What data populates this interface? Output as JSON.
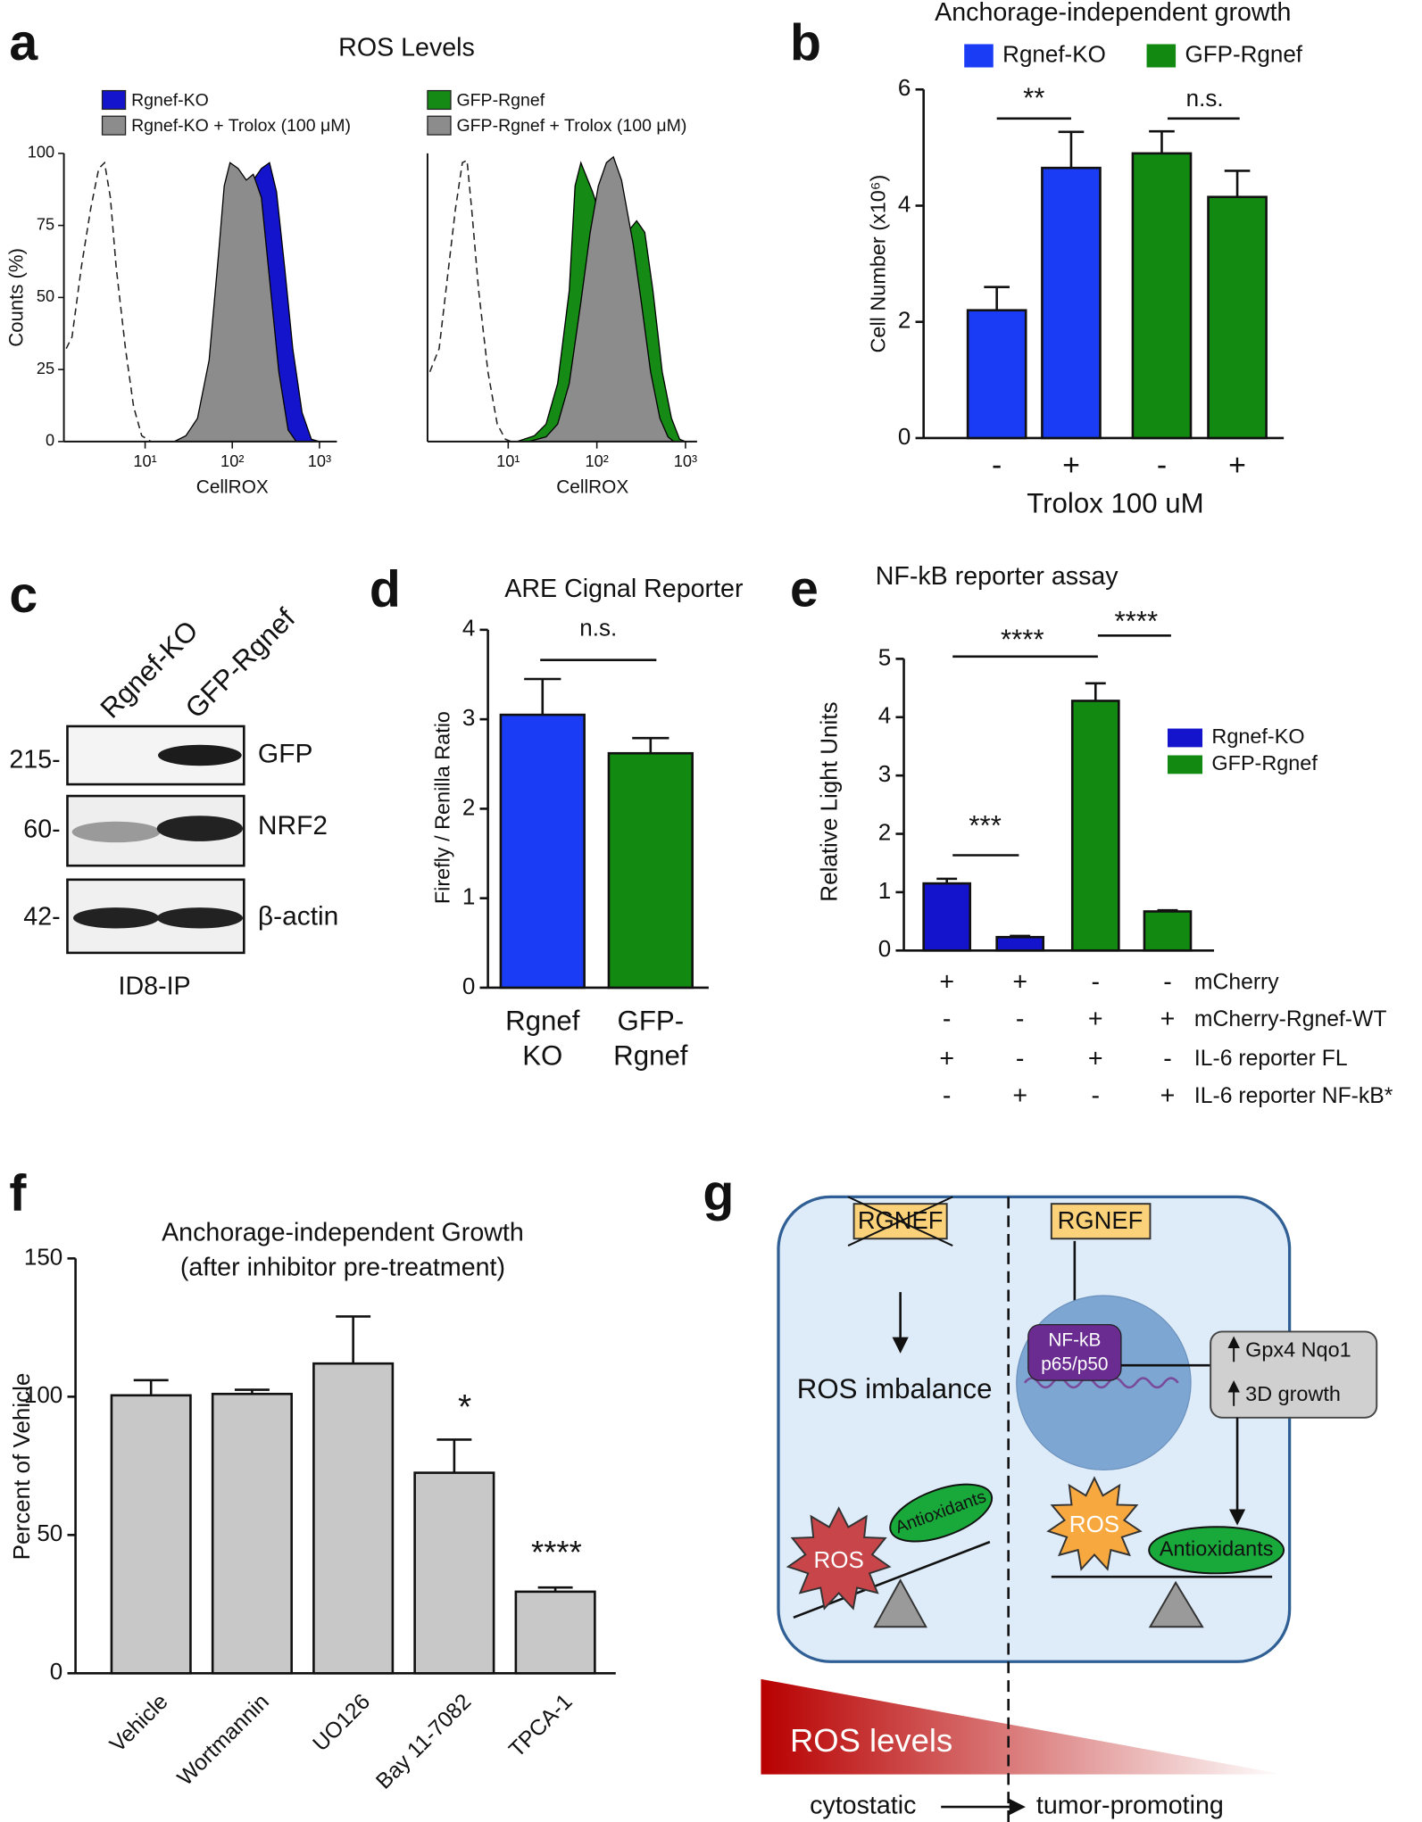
{
  "panel_labels": [
    "a",
    "b",
    "c",
    "d",
    "e",
    "f",
    "g"
  ],
  "chart_data": [
    {
      "type": "density",
      "title": "ROS Levels",
      "ylabel": "Counts (%)",
      "xlabel": "CellROX",
      "xscale": "log",
      "xlim": [
        1.17,
        1585
      ],
      "xticks": [
        {
          "value": 10,
          "label": "10¹"
        },
        {
          "value": 100,
          "label": "10²"
        },
        {
          "value": 1000,
          "label": "10³"
        }
      ],
      "ylim": [
        0,
        100
      ],
      "yticks": [
        0,
        25,
        50,
        75,
        100
      ],
      "series": [
        {
          "name": "Rgnef-KO",
          "color": "#1414cc"
        },
        {
          "name": "Rgnef-KO + Trolox (100 μM)",
          "color": "#8c8c8c"
        }
      ]
    },
    {
      "type": "density",
      "xlabel": "CellROX",
      "xscale": "log",
      "xlim": [
        1.23,
        1350
      ],
      "xticks": [
        {
          "value": 10,
          "label": "10¹"
        },
        {
          "value": 100,
          "label": "10²"
        },
        {
          "value": 1000,
          "label": "10³"
        }
      ],
      "ylim": [
        0,
        100
      ],
      "series": [
        {
          "name": "GFP-Rgnef",
          "color": "#158a15"
        },
        {
          "name": "GFP-Rgnef + Trolox (100 μM)",
          "color": "#8c8c8c"
        }
      ]
    },
    {
      "type": "bar",
      "title": "Anchorage-independent growth",
      "ylabel": "Cell Number (x10⁶)",
      "xlabel": "Trolox 100 uM",
      "categories": [
        "-",
        "+",
        "-",
        "+"
      ],
      "ylim": [
        0,
        6
      ],
      "yticks": [
        0,
        2,
        4,
        6
      ],
      "series": [
        {
          "name": "Rgnef-KO",
          "color": "#1a3cf5",
          "values": [
            2.2,
            4.65,
            null,
            null
          ],
          "errors": [
            0.4,
            0.62,
            null,
            null
          ]
        },
        {
          "name": "GFP-Rgnef",
          "color": "#128a12",
          "values": [
            null,
            null,
            4.9,
            4.15
          ],
          "errors": [
            null,
            null,
            0.38,
            0.45
          ]
        }
      ],
      "annotations": [
        {
          "text": "**"
        },
        {
          "text": "n.s."
        }
      ]
    },
    {
      "type": "bar",
      "title": "ARE Cignal Reporter",
      "ylabel": "Firefly / Renilla Ratio",
      "categories": [
        [
          "Rgnef",
          "KO"
        ],
        [
          "GFP-",
          "Rgnef"
        ]
      ],
      "ylim": [
        0,
        4
      ],
      "yticks": [
        0,
        1,
        2,
        3,
        4
      ],
      "values": [
        3.05,
        2.62
      ],
      "errors": [
        0.4,
        0.17
      ],
      "colors": [
        "#1a3cf5",
        "#128a12"
      ],
      "annotations": [
        {
          "text": "n.s."
        }
      ]
    },
    {
      "type": "bar",
      "title": "NF-kB reporter assay",
      "ylabel": "Relative Light Units",
      "ylim": [
        0,
        5
      ],
      "yticks": [
        0,
        1,
        2,
        3,
        4,
        5
      ],
      "series": [
        {
          "name": "Rgnef-KO",
          "color": "#1414cc",
          "values": [
            1.15,
            0.23,
            null,
            null
          ],
          "errors": [
            0.08,
            0.02,
            null,
            null
          ]
        },
        {
          "name": "GFP-Rgnef",
          "color": "#128a12",
          "values": [
            null,
            null,
            4.28,
            0.67
          ],
          "errors": [
            null,
            null,
            0.3,
            0.02
          ]
        }
      ],
      "conditions": [
        {
          "name": "mCherry",
          "signs": [
            "+",
            "+",
            "-",
            "-"
          ]
        },
        {
          "name": "mCherry-Rgnef-WT",
          "signs": [
            "-",
            "-",
            "+",
            "+"
          ]
        },
        {
          "name": "IL-6 reporter FL",
          "signs": [
            "+",
            "-",
            "+",
            "-"
          ]
        },
        {
          "name": "IL-6 reporter NF-kB*",
          "signs": [
            "-",
            "+",
            "-",
            "+"
          ]
        }
      ],
      "annotations": [
        {
          "text": "***"
        },
        {
          "text": "****"
        },
        {
          "text": "****"
        }
      ]
    },
    {
      "type": "bar",
      "title": "Anchorage-independent Growth",
      "subtitle": "(after inhibitor pre-treatment)",
      "ylabel": "Percent of Vehicle",
      "categories": [
        "Vehicle",
        "Wortmannin",
        "UO126",
        "Bay 11-7082",
        "TPCA-1"
      ],
      "ylim": [
        0,
        150
      ],
      "yticks": [
        0,
        50,
        100,
        150
      ],
      "values": [
        100.5,
        101,
        112,
        72.5,
        29.5
      ],
      "errors": [
        5.5,
        1.5,
        17,
        12,
        1.5
      ],
      "color": "#c8c8c8",
      "annotations": [
        {
          "text": "*"
        },
        {
          "text": "****"
        }
      ]
    }
  ],
  "blot": {
    "lanes": [
      "Rgnef-KO",
      "GFP-Rgnef"
    ],
    "rows": [
      {
        "marker": "215-",
        "name": "GFP"
      },
      {
        "marker": "60-",
        "name": "NRF2"
      },
      {
        "marker": "42-",
        "name": "β-actin"
      }
    ],
    "cell_line": "ID8-IP"
  },
  "diagram": {
    "left": {
      "gene": "RGNEF",
      "result": "ROS imbalance",
      "ros": "ROS",
      "antioxidants": "Antioxidants"
    },
    "right": {
      "gene": "RGNEF",
      "complex": [
        "NF-kB",
        "p65/p50"
      ],
      "targets": [
        "Gpx4 Nqo1",
        "3D growth"
      ],
      "ros": "ROS",
      "antioxidants": "Antioxidants"
    },
    "gradient": "ROS levels",
    "from": "cytostatic",
    "to": "tumor-promoting"
  }
}
